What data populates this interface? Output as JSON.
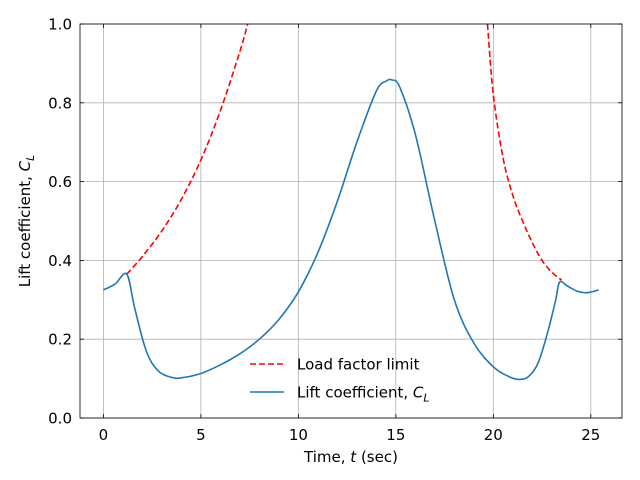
{
  "chart_data": {
    "type": "line",
    "title": "",
    "xlabel": "Time, t (sec)",
    "ylabel": "Lift coefficient, C_L",
    "xlim": [
      -1.2,
      26.6
    ],
    "ylim": [
      0.0,
      1.0
    ],
    "xticks": [
      0,
      5,
      10,
      15,
      20,
      25
    ],
    "yticks": [
      0.0,
      0.2,
      0.4,
      0.6,
      0.8,
      1.0
    ],
    "xtick_labels": [
      "0",
      "5",
      "10",
      "15",
      "20",
      "25"
    ],
    "ytick_labels": [
      "0.0",
      "0.2",
      "0.4",
      "0.6",
      "0.8",
      "1.0"
    ],
    "grid": true,
    "legend_position": "bottom-center",
    "series": [
      {
        "name": "Load factor limit",
        "color": "#ff0000",
        "style": "dashed",
        "segments": [
          {
            "x": [
              1.2,
              2,
              3,
              4,
              5,
              6,
              7,
              7.4
            ],
            "y": [
              0.365,
              0.41,
              0.475,
              0.555,
              0.655,
              0.78,
              0.93,
              1.0
            ]
          },
          {
            "x": [
              19.7,
              20,
              20.5,
              21,
              21.5,
              22,
              22.5,
              23,
              23.5
            ],
            "y": [
              1.0,
              0.82,
              0.66,
              0.565,
              0.5,
              0.445,
              0.4,
              0.37,
              0.35
            ]
          }
        ]
      },
      {
        "name": "Lift coefficient, C_L",
        "color": "#1f77b4",
        "style": "solid",
        "x": [
          0,
          0.6,
          1.2,
          1.6,
          2.2,
          2.8,
          3.5,
          4.0,
          5.0,
          6.0,
          7.0,
          8.0,
          9.0,
          10.0,
          11.0,
          12.0,
          13.0,
          14.0,
          14.5,
          14.8,
          15.2,
          16.0,
          17.0,
          18.0,
          19.0,
          20.0,
          20.8,
          21.3,
          21.8,
          22.3,
          22.8,
          23.2,
          23.4,
          23.8,
          24.3,
          24.8,
          25.4
        ],
        "y": [
          0.325,
          0.34,
          0.365,
          0.28,
          0.17,
          0.12,
          0.103,
          0.102,
          0.113,
          0.135,
          0.163,
          0.2,
          0.25,
          0.32,
          0.42,
          0.55,
          0.7,
          0.83,
          0.855,
          0.858,
          0.84,
          0.72,
          0.5,
          0.3,
          0.19,
          0.13,
          0.105,
          0.098,
          0.105,
          0.14,
          0.22,
          0.3,
          0.345,
          0.335,
          0.322,
          0.318,
          0.325
        ]
      }
    ]
  }
}
